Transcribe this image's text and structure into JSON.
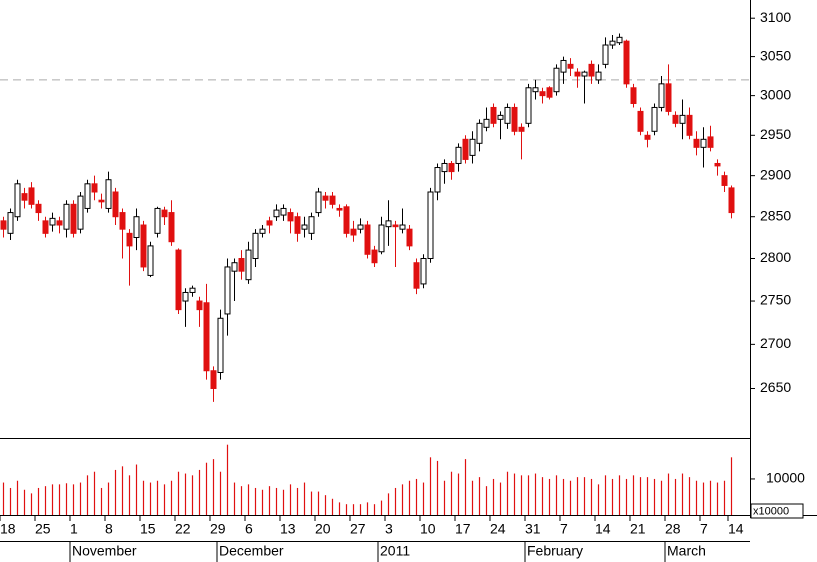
{
  "chart_data": {
    "type": "candlestick",
    "log_scale": true,
    "up_color": "#ffffff",
    "down_color": "#e01010",
    "ylim": [
      2595,
      3124
    ],
    "yticks": [
      2650,
      2700,
      2750,
      2800,
      2850,
      2900,
      2950,
      3000,
      3050,
      3100
    ],
    "reference_line": 3020,
    "categories": [
      "18",
      null,
      null,
      null,
      null,
      "25",
      null,
      null,
      null,
      null,
      "1",
      null,
      null,
      null,
      null,
      "8",
      null,
      null,
      null,
      null,
      "15",
      null,
      null,
      null,
      null,
      "22",
      null,
      null,
      null,
      null,
      "29",
      null,
      null,
      null,
      null,
      "6",
      null,
      null,
      null,
      null,
      "13",
      null,
      null,
      null,
      null,
      "20",
      null,
      null,
      null,
      null,
      "27",
      null,
      null,
      null,
      null,
      "3",
      null,
      null,
      null,
      null,
      "10",
      null,
      null,
      null,
      null,
      "17",
      null,
      null,
      null,
      null,
      "24",
      null,
      null,
      null,
      null,
      "31",
      null,
      null,
      null,
      null,
      "7",
      null,
      null,
      null,
      null,
      "14",
      null,
      null,
      null,
      null,
      "21",
      null,
      null,
      null,
      null,
      "28",
      null,
      null,
      null,
      null,
      "7",
      null,
      null,
      null,
      "14"
    ],
    "months": [
      {
        "label": "November",
        "start": 10
      },
      {
        "label": "December",
        "start": 31
      },
      {
        "label": "2011",
        "start": 54
      },
      {
        "label": "February",
        "start": 75
      },
      {
        "label": "March",
        "start": 95
      }
    ],
    "open": [
      2845,
      2830,
      2850,
      2878,
      2885,
      2865,
      2845,
      2840,
      2845,
      2835,
      2865,
      2835,
      2860,
      2890,
      2870,
      2860,
      2880,
      2855,
      2830,
      2825,
      2840,
      2780,
      2830,
      2858,
      2855,
      2810,
      2750,
      2760,
      2750,
      2748,
      2670,
      2668,
      2735,
      2785,
      2800,
      2775,
      2800,
      2830,
      2845,
      2850,
      2852,
      2855,
      2850,
      2835,
      2830,
      2855,
      2875,
      2875,
      2860,
      2862,
      2835,
      2835,
      2840,
      2810,
      2808,
      2838,
      2840,
      2835,
      2835,
      2795,
      2770,
      2800,
      2880,
      2905,
      2915,
      2915,
      2945,
      2925,
      2940,
      2960,
      2985,
      2970,
      2965,
      2985,
      2960,
      2965,
      3005,
      3005,
      3010,
      3005,
      3030,
      3040,
      3030,
      3025,
      3040,
      3020,
      3040,
      3065,
      3068,
      3070,
      3010,
      2980,
      2950,
      2955,
      2985,
      3015,
      2975,
      2965,
      2975,
      2945,
      2935,
      2948,
      2915,
      2900,
      2885
    ],
    "high": [
      2850,
      2860,
      2895,
      2885,
      2892,
      2870,
      2850,
      2855,
      2850,
      2870,
      2870,
      2880,
      2895,
      2900,
      2878,
      2905,
      2885,
      2860,
      2835,
      2860,
      2845,
      2820,
      2862,
      2862,
      2870,
      2812,
      2765,
      2768,
      2755,
      2770,
      2675,
      2740,
      2800,
      2800,
      2810,
      2820,
      2835,
      2840,
      2850,
      2865,
      2865,
      2860,
      2855,
      2850,
      2855,
      2885,
      2880,
      2880,
      2865,
      2865,
      2845,
      2848,
      2845,
      2815,
      2850,
      2870,
      2845,
      2860,
      2840,
      2800,
      2805,
      2885,
      2915,
      2920,
      2918,
      2940,
      2950,
      2955,
      2970,
      2985,
      2990,
      2980,
      2990,
      2990,
      2965,
      3015,
      3020,
      3010,
      3012,
      3040,
      3050,
      3048,
      3035,
      3032,
      3045,
      3040,
      3075,
      3078,
      3080,
      3072,
      3015,
      2985,
      2955,
      2990,
      3025,
      3040,
      2980,
      2995,
      2985,
      2955,
      2960,
      2962,
      2920,
      2905,
      2888
    ],
    "low": [
      2825,
      2822,
      2845,
      2860,
      2860,
      2845,
      2825,
      2832,
      2830,
      2825,
      2825,
      2830,
      2855,
      2870,
      2860,
      2855,
      2840,
      2800,
      2768,
      2810,
      2785,
      2778,
      2825,
      2840,
      2815,
      2735,
      2720,
      2755,
      2720,
      2660,
      2635,
      2660,
      2710,
      2750,
      2775,
      2770,
      2790,
      2825,
      2830,
      2845,
      2845,
      2830,
      2820,
      2825,
      2822,
      2850,
      2860,
      2860,
      2850,
      2825,
      2820,
      2830,
      2800,
      2790,
      2805,
      2815,
      2790,
      2830,
      2810,
      2758,
      2765,
      2795,
      2870,
      2890,
      2895,
      2905,
      2915,
      2915,
      2930,
      2955,
      2960,
      2945,
      2958,
      2950,
      2920,
      2960,
      2995,
      2990,
      2995,
      3000,
      3015,
      3025,
      3010,
      2990,
      3015,
      3015,
      3035,
      3060,
      3065,
      3010,
      2985,
      2950,
      2935,
      2950,
      2980,
      2975,
      2960,
      2945,
      2945,
      2925,
      2910,
      2930,
      2900,
      2880,
      2848
    ],
    "close": [
      2835,
      2855,
      2890,
      2870,
      2865,
      2855,
      2830,
      2848,
      2840,
      2865,
      2830,
      2875,
      2890,
      2880,
      2868,
      2895,
      2850,
      2835,
      2815,
      2850,
      2790,
      2815,
      2860,
      2850,
      2820,
      2740,
      2760,
      2765,
      2740,
      2670,
      2650,
      2730,
      2790,
      2795,
      2785,
      2810,
      2830,
      2835,
      2840,
      2858,
      2860,
      2845,
      2830,
      2840,
      2850,
      2880,
      2870,
      2865,
      2858,
      2830,
      2828,
      2840,
      2805,
      2795,
      2840,
      2845,
      2838,
      2840,
      2815,
      2765,
      2800,
      2880,
      2910,
      2915,
      2905,
      2935,
      2920,
      2945,
      2965,
      2970,
      2965,
      2975,
      2985,
      2955,
      2955,
      3010,
      3010,
      3000,
      2998,
      3035,
      3045,
      3035,
      3025,
      3030,
      3025,
      3030,
      3065,
      3070,
      3075,
      3015,
      2990,
      2955,
      2945,
      2985,
      3015,
      2980,
      2965,
      2975,
      2950,
      2935,
      2945,
      2935,
      2912,
      2888,
      2855
    ],
    "volume": {
      "color": "#e01010",
      "ylim": [
        0,
        20800
      ],
      "yticks": [
        10000
      ],
      "unit_label": "x10000",
      "values": [
        9000,
        7500,
        9500,
        7000,
        6000,
        7500,
        8000,
        8500,
        8500,
        8800,
        8500,
        9000,
        11000,
        12000,
        7500,
        9000,
        12500,
        13500,
        11000,
        14000,
        9500,
        9000,
        9500,
        8500,
        9500,
        12000,
        11500,
        11000,
        12500,
        14500,
        15500,
        12000,
        19500,
        9000,
        8000,
        8500,
        7500,
        7000,
        8000,
        7500,
        7000,
        8500,
        7500,
        9000,
        6500,
        6500,
        5500,
        4500,
        3500,
        3000,
        3000,
        3000,
        3500,
        3000,
        4000,
        6000,
        7500,
        8500,
        9500,
        10000,
        9000,
        16000,
        15000,
        9500,
        12000,
        11500,
        15500,
        9500,
        10500,
        8000,
        10000,
        9000,
        12000,
        11500,
        11000,
        11000,
        11500,
        10500,
        10000,
        11000,
        10000,
        9500,
        10500,
        10500,
        10000,
        8500,
        11000,
        10000,
        11000,
        10000,
        11000,
        10500,
        10500,
        10000,
        9500,
        11500,
        10000,
        11500,
        10500,
        9500,
        9000,
        9500,
        9000,
        9500,
        16000
      ]
    }
  }
}
